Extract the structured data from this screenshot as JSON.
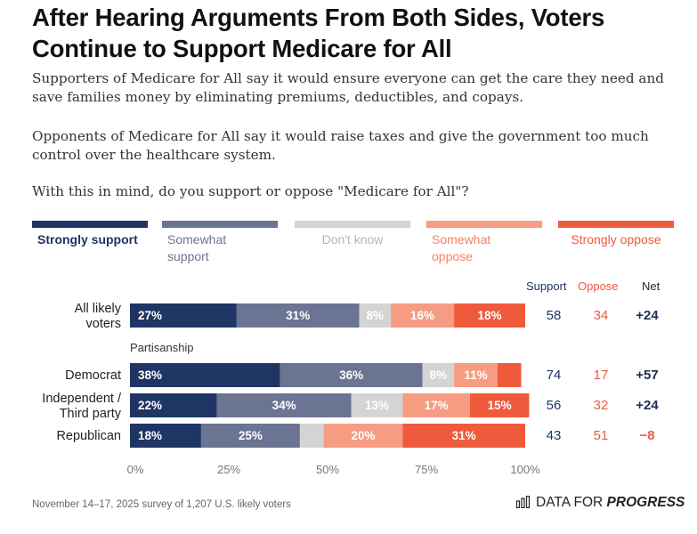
{
  "title": "After Hearing Arguments From Both Sides, Voters Continue to Support Medicare for All",
  "paragraphs": {
    "p1": "Supporters of Medicare for All say it would ensure everyone can get the care they need and save families money by eliminating premiums, deductibles, and copays.",
    "p2": "Opponents of Medicare for All say it would raise taxes and give the government too much control over the healthcare system.",
    "p3": "With this in mind, do you support or oppose \"Medicare for All\"?"
  },
  "legend": [
    {
      "label": "Strongly support",
      "color": "#1f3563",
      "text_color": "#1f3563"
    },
    {
      "label": "Somewhat support",
      "color": "#6b7493",
      "text_color": "#6b7493"
    },
    {
      "label": "Don't know",
      "color": "#d4d4d4",
      "text_color": "#b5b5b5"
    },
    {
      "label": "Somewhat oppose",
      "color": "#f69c82",
      "text_color": "#f08466"
    },
    {
      "label": "Strongly oppose",
      "color": "#ef5a3c",
      "text_color": "#ef5a3c"
    }
  ],
  "columns": {
    "support": "Support",
    "oppose": "Oppose",
    "net": "Net"
  },
  "section_label": "Partisanship",
  "chart_data": {
    "type": "bar",
    "orientation": "horizontal",
    "stacked": true,
    "categories": [
      "All likely voters",
      "Democrat",
      "Independent / Third party",
      "Republican"
    ],
    "series": [
      {
        "name": "Strongly support",
        "values": [
          27,
          38,
          22,
          18
        ],
        "labels": [
          "27%",
          "38%",
          "22%",
          "18%"
        ]
      },
      {
        "name": "Somewhat support",
        "values": [
          31,
          36,
          34,
          25
        ],
        "labels": [
          "31%",
          "36%",
          "34%",
          "25%"
        ]
      },
      {
        "name": "Don't know",
        "values": [
          8,
          8,
          13,
          6
        ],
        "labels": [
          "8%",
          "8%",
          "13%",
          ""
        ]
      },
      {
        "name": "Somewhat oppose",
        "values": [
          16,
          11,
          17,
          20
        ],
        "labels": [
          "16%",
          "11%",
          "17%",
          "20%"
        ]
      },
      {
        "name": "Strongly oppose",
        "values": [
          18,
          6,
          15,
          31
        ],
        "labels": [
          "18%",
          "",
          "15%",
          "31%"
        ]
      }
    ],
    "support": [
      "58",
      "74",
      "56",
      "43"
    ],
    "oppose": [
      "34",
      "17",
      "32",
      "51"
    ],
    "net": [
      "+24",
      "+57",
      "+24",
      "−8"
    ],
    "xlim": [
      0,
      100
    ],
    "xticks": [
      "0%",
      "25%",
      "50%",
      "75%",
      "100%"
    ],
    "row_labels": [
      [
        "All likely",
        "voters"
      ],
      [
        "Democrat"
      ],
      [
        "Independent /",
        "Third party"
      ],
      [
        "Republican"
      ]
    ]
  },
  "footer": "November 14–17, 2025 survey of 1,207 U.S. likely voters",
  "brand": {
    "prefix": "DATA FOR",
    "emphasis": "PROGRESS"
  },
  "colors": {
    "support_text": "#1f3563",
    "oppose_text": "#ef5a3c",
    "net_text": "#1f2d50"
  }
}
